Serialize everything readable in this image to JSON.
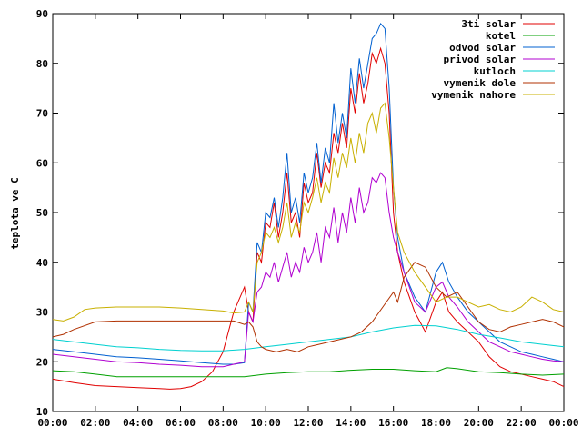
{
  "chart_data": {
    "type": "line",
    "title": "",
    "xlabel": "",
    "ylabel": "teplota ve C",
    "xlim": [
      "00:00",
      "24:00"
    ],
    "ylim": [
      10,
      90
    ],
    "grid": false,
    "legend_position": "top-right",
    "x_ticks": [
      "00:00",
      "02:00",
      "04:00",
      "06:00",
      "08:00",
      "10:00",
      "12:00",
      "14:00",
      "16:00",
      "18:00",
      "20:00",
      "22:00",
      "00:00"
    ],
    "y_ticks": [
      10,
      20,
      30,
      40,
      50,
      60,
      70,
      80,
      90
    ],
    "series": [
      {
        "name": "3ti solar",
        "color": "#e00000",
        "x": [
          0,
          1,
          2,
          3,
          4,
          5,
          5.5,
          6,
          6.5,
          7,
          7.5,
          8,
          8.5,
          9,
          9.2,
          9.4,
          9.6,
          9.8,
          10,
          10.2,
          10.4,
          10.6,
          10.8,
          11,
          11.2,
          11.4,
          11.6,
          11.8,
          12,
          12.2,
          12.4,
          12.6,
          12.8,
          13,
          13.2,
          13.4,
          13.6,
          13.8,
          14,
          14.2,
          14.4,
          14.6,
          14.8,
          15,
          15.2,
          15.4,
          15.6,
          15.8,
          16,
          16.2,
          16.5,
          17,
          17.5,
          18,
          18.3,
          18.6,
          19,
          19.5,
          20,
          20.5,
          21,
          21.5,
          22,
          22.5,
          23,
          23.5,
          24
        ],
        "y": [
          16.5,
          15.8,
          15.2,
          15,
          14.8,
          14.6,
          14.5,
          14.6,
          15,
          16,
          18,
          22,
          30,
          35,
          30,
          28,
          42,
          40,
          48,
          47,
          52,
          45,
          50,
          58,
          48,
          50,
          45,
          56,
          52,
          54,
          62,
          55,
          60,
          58,
          66,
          62,
          68,
          63,
          75,
          70,
          78,
          72,
          76,
          82,
          80,
          83,
          80,
          70,
          50,
          42,
          36,
          30,
          26,
          32,
          34,
          30,
          28,
          26,
          24,
          21,
          19,
          18,
          17.5,
          17,
          16.5,
          16,
          15
        ]
      },
      {
        "name": "kotel",
        "color": "#00a000",
        "x": [
          0,
          1,
          2,
          3,
          4,
          5,
          6,
          7,
          8,
          9,
          10,
          11,
          12,
          13,
          14,
          15,
          16,
          17,
          18,
          18.5,
          19,
          20,
          21,
          22,
          23,
          24
        ],
        "y": [
          18.2,
          18,
          17.5,
          17,
          17,
          17,
          17,
          17,
          17,
          17,
          17.5,
          17.8,
          18,
          18,
          18.3,
          18.5,
          18.5,
          18.2,
          18,
          18.8,
          18.6,
          18,
          17.8,
          17.5,
          17.3,
          17.5
        ]
      },
      {
        "name": "odvod solar",
        "color": "#0060d0",
        "x": [
          0,
          1,
          2,
          3,
          4,
          5,
          6,
          7,
          8,
          8.5,
          9,
          9.2,
          9.4,
          9.6,
          9.8,
          10,
          10.2,
          10.4,
          10.6,
          10.8,
          11,
          11.2,
          11.4,
          11.6,
          11.8,
          12,
          12.2,
          12.4,
          12.6,
          12.8,
          13,
          13.2,
          13.4,
          13.6,
          13.8,
          14,
          14.2,
          14.4,
          14.6,
          14.8,
          15,
          15.2,
          15.4,
          15.6,
          15.8,
          16,
          16.2,
          16.5,
          17,
          17.5,
          18,
          18.3,
          18.6,
          19,
          19.5,
          20,
          20.5,
          21,
          21.5,
          22,
          22.5,
          23,
          23.5,
          24
        ],
        "y": [
          22.5,
          22,
          21.5,
          21,
          20.8,
          20.5,
          20.2,
          19.8,
          19.5,
          19.5,
          19.8,
          32,
          30,
          44,
          42,
          50,
          49,
          53,
          47,
          53,
          62,
          50,
          53,
          48,
          58,
          54,
          57,
          64,
          56,
          63,
          60,
          72,
          64,
          70,
          65,
          79,
          72,
          81,
          75,
          80,
          85,
          86,
          88,
          87,
          75,
          55,
          45,
          38,
          33,
          30,
          38,
          40,
          36,
          33,
          30,
          28,
          26,
          24,
          23,
          22,
          21.5,
          21,
          20.5,
          20
        ]
      },
      {
        "name": "privod solar",
        "color": "#b000d0",
        "x": [
          0,
          1,
          2,
          3,
          4,
          5,
          6,
          7,
          8,
          8.5,
          9,
          9.2,
          9.4,
          9.6,
          9.8,
          10,
          10.2,
          10.4,
          10.6,
          10.8,
          11,
          11.2,
          11.4,
          11.6,
          11.8,
          12,
          12.2,
          12.4,
          12.6,
          12.8,
          13,
          13.2,
          13.4,
          13.6,
          13.8,
          14,
          14.2,
          14.4,
          14.6,
          14.8,
          15,
          15.2,
          15.4,
          15.6,
          15.8,
          16,
          16.2,
          16.5,
          17,
          17.5,
          18,
          18.3,
          18.6,
          19,
          19.5,
          20,
          20.5,
          21,
          21.5,
          22,
          22.5,
          23,
          23.5,
          24
        ],
        "y": [
          21.5,
          21,
          20.5,
          20,
          19.8,
          19.5,
          19.3,
          19,
          19,
          19.5,
          20,
          30,
          28,
          34,
          35,
          38,
          37,
          40,
          36,
          39,
          42,
          37,
          40,
          38,
          43,
          40,
          42,
          46,
          40,
          47,
          45,
          51,
          44,
          50,
          46,
          53,
          48,
          55,
          50,
          52,
          57,
          56,
          58,
          57,
          50,
          45,
          42,
          38,
          32,
          30,
          35,
          36,
          33,
          31,
          28,
          26,
          24,
          23,
          22,
          21.5,
          21,
          20.5,
          20.2,
          20
        ]
      },
      {
        "name": "kutloch",
        "color": "#00d0d0",
        "x": [
          0,
          1,
          2,
          3,
          4,
          5,
          6,
          7,
          8,
          9,
          10,
          11,
          12,
          13,
          14,
          15,
          16,
          17,
          18,
          19,
          20,
          21,
          22,
          23,
          24
        ],
        "y": [
          24.5,
          24,
          23.5,
          23,
          22.8,
          22.5,
          22.3,
          22.2,
          22.2,
          22.5,
          23,
          23.5,
          24,
          24.5,
          25,
          26,
          26.8,
          27.3,
          27.2,
          26.5,
          25.5,
          24.8,
          24,
          23.5,
          23
        ]
      },
      {
        "name": "vymenik dole",
        "color": "#b03000",
        "x": [
          0,
          0.5,
          1,
          2,
          3,
          4,
          5,
          6,
          7,
          8,
          8.5,
          9,
          9.2,
          9.4,
          9.6,
          9.8,
          10,
          10.5,
          11,
          11.5,
          12,
          12.5,
          13,
          13.5,
          14,
          14.5,
          15,
          15.5,
          16,
          16.2,
          16.5,
          17,
          17.5,
          18,
          18.5,
          19,
          19.5,
          20,
          20.5,
          21,
          21.5,
          22,
          22.5,
          23,
          23.5,
          24
        ],
        "y": [
          25,
          25.5,
          26.5,
          28,
          28.2,
          28.2,
          28.2,
          28.2,
          28.2,
          28.2,
          28.2,
          27.5,
          28,
          27,
          24,
          23,
          22.5,
          22,
          22.5,
          22,
          23,
          23.5,
          24,
          24.5,
          25,
          26,
          28,
          31,
          34,
          32,
          37,
          40,
          39,
          35,
          33,
          34,
          31,
          28,
          26.5,
          26,
          27,
          27.5,
          28,
          28.5,
          28,
          27
        ]
      },
      {
        "name": "vymenik nahore",
        "color": "#c8b000",
        "x": [
          0,
          0.5,
          1,
          1.5,
          2,
          3,
          4,
          5,
          6,
          7,
          8,
          8.5,
          9,
          9.2,
          9.4,
          9.6,
          9.8,
          10,
          10.2,
          10.4,
          10.6,
          10.8,
          11,
          11.2,
          11.4,
          11.6,
          11.8,
          12,
          12.2,
          12.4,
          12.6,
          12.8,
          13,
          13.2,
          13.4,
          13.6,
          13.8,
          14,
          14.2,
          14.4,
          14.6,
          14.8,
          15,
          15.2,
          15.4,
          15.6,
          15.8,
          16,
          16.2,
          16.5,
          17,
          17.5,
          18,
          18.5,
          19,
          19.5,
          20,
          20.5,
          21,
          21.5,
          22,
          22.5,
          23,
          23.5,
          24
        ],
        "y": [
          28.5,
          28.2,
          29,
          30.5,
          30.8,
          31,
          31,
          31,
          30.8,
          30.5,
          30.2,
          29.8,
          30,
          32,
          30,
          40,
          42,
          46,
          45,
          47,
          44,
          47,
          52,
          45,
          48,
          46,
          52,
          50,
          53,
          57,
          52,
          56,
          54,
          61,
          57,
          62,
          59,
          65,
          60,
          66,
          62,
          68,
          70,
          66,
          71,
          72,
          65,
          55,
          46,
          42,
          38,
          35,
          32,
          33,
          33,
          32,
          31,
          31.5,
          30.5,
          30,
          31,
          33,
          32,
          30.5,
          30
        ]
      }
    ]
  }
}
